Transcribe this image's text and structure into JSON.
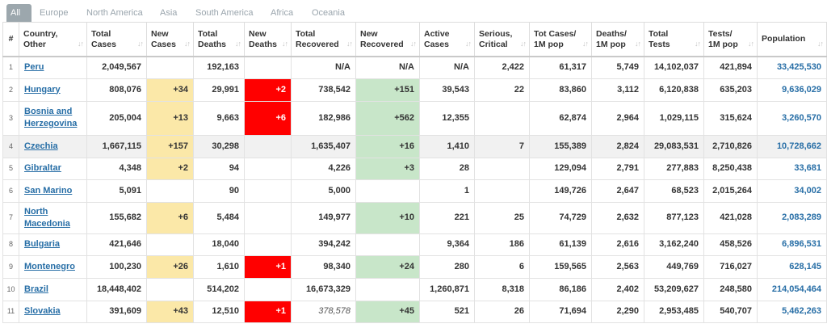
{
  "tabs": [
    "All",
    "Europe",
    "North America",
    "Asia",
    "South America",
    "Africa",
    "Oceania"
  ],
  "headers": {
    "idx": "#",
    "country": [
      "Country,",
      "Other"
    ],
    "total_cases": [
      "Total",
      "Cases"
    ],
    "new_cases": [
      "New",
      "Cases"
    ],
    "total_deaths": [
      "Total",
      "Deaths"
    ],
    "new_deaths": [
      "New",
      "Deaths"
    ],
    "total_recovered": [
      "Total",
      "Recovered"
    ],
    "new_recovered": [
      "New",
      "Recovered"
    ],
    "active_cases": [
      "Active",
      "Cases"
    ],
    "serious": [
      "Serious,",
      "Critical"
    ],
    "cases_per_m": [
      "Tot Cases/",
      "1M pop"
    ],
    "deaths_per_m": [
      "Deaths/",
      "1M pop"
    ],
    "total_tests": [
      "Total",
      "Tests"
    ],
    "tests_per_m": [
      "Tests/",
      "1M pop"
    ],
    "population": [
      "Population",
      ""
    ]
  },
  "sort_glyph": "↓↑",
  "rows": [
    {
      "idx": "1",
      "country": "Peru",
      "total_cases": "2,049,567",
      "new_cases": "",
      "total_deaths": "192,163",
      "new_deaths": "",
      "total_recovered": "N/A",
      "new_recovered": "N/A",
      "active_cases": "N/A",
      "serious": "2,422",
      "cases_per_m": "61,317",
      "deaths_per_m": "5,749",
      "total_tests": "14,102,037",
      "tests_per_m": "421,894",
      "population": "33,425,530"
    },
    {
      "idx": "2",
      "country": "Hungary",
      "total_cases": "808,076",
      "new_cases": "+34",
      "total_deaths": "29,991",
      "new_deaths": "+2",
      "total_recovered": "738,542",
      "new_recovered": "+151",
      "active_cases": "39,543",
      "serious": "22",
      "cases_per_m": "83,860",
      "deaths_per_m": "3,112",
      "total_tests": "6,120,838",
      "tests_per_m": "635,203",
      "population": "9,636,029"
    },
    {
      "idx": "3",
      "country": "Bosnia and Herzegovina",
      "total_cases": "205,004",
      "new_cases": "+13",
      "total_deaths": "9,663",
      "new_deaths": "+6",
      "total_recovered": "182,986",
      "new_recovered": "+562",
      "active_cases": "12,355",
      "serious": "",
      "cases_per_m": "62,874",
      "deaths_per_m": "2,964",
      "total_tests": "1,029,115",
      "tests_per_m": "315,624",
      "population": "3,260,570"
    },
    {
      "idx": "4",
      "country": "Czechia",
      "total_cases": "1,667,115",
      "new_cases": "+157",
      "total_deaths": "30,298",
      "new_deaths": "",
      "total_recovered": "1,635,407",
      "new_recovered": "+16",
      "active_cases": "1,410",
      "serious": "7",
      "cases_per_m": "155,389",
      "deaths_per_m": "2,824",
      "total_tests": "29,083,531",
      "tests_per_m": "2,710,826",
      "population": "10,728,662"
    },
    {
      "idx": "5",
      "country": "Gibraltar",
      "total_cases": "4,348",
      "new_cases": "+2",
      "total_deaths": "94",
      "new_deaths": "",
      "total_recovered": "4,226",
      "new_recovered": "+3",
      "active_cases": "28",
      "serious": "",
      "cases_per_m": "129,094",
      "deaths_per_m": "2,791",
      "total_tests": "277,883",
      "tests_per_m": "8,250,438",
      "population": "33,681"
    },
    {
      "idx": "6",
      "country": "San Marino",
      "total_cases": "5,091",
      "new_cases": "",
      "total_deaths": "90",
      "new_deaths": "",
      "total_recovered": "5,000",
      "new_recovered": "",
      "active_cases": "1",
      "serious": "",
      "cases_per_m": "149,726",
      "deaths_per_m": "2,647",
      "total_tests": "68,523",
      "tests_per_m": "2,015,264",
      "population": "34,002"
    },
    {
      "idx": "7",
      "country": "North Macedonia",
      "total_cases": "155,682",
      "new_cases": "+6",
      "total_deaths": "5,484",
      "new_deaths": "",
      "total_recovered": "149,977",
      "new_recovered": "+10",
      "active_cases": "221",
      "serious": "25",
      "cases_per_m": "74,729",
      "deaths_per_m": "2,632",
      "total_tests": "877,123",
      "tests_per_m": "421,028",
      "population": "2,083,289"
    },
    {
      "idx": "8",
      "country": "Bulgaria",
      "total_cases": "421,646",
      "new_cases": "",
      "total_deaths": "18,040",
      "new_deaths": "",
      "total_recovered": "394,242",
      "new_recovered": "",
      "active_cases": "9,364",
      "serious": "186",
      "cases_per_m": "61,139",
      "deaths_per_m": "2,616",
      "total_tests": "3,162,240",
      "tests_per_m": "458,526",
      "population": "6,896,531"
    },
    {
      "idx": "9",
      "country": "Montenegro",
      "total_cases": "100,230",
      "new_cases": "+26",
      "total_deaths": "1,610",
      "new_deaths": "+1",
      "total_recovered": "98,340",
      "new_recovered": "+24",
      "active_cases": "280",
      "serious": "6",
      "cases_per_m": "159,565",
      "deaths_per_m": "2,563",
      "total_tests": "449,769",
      "tests_per_m": "716,027",
      "population": "628,145"
    },
    {
      "idx": "10",
      "country": "Brazil",
      "total_cases": "18,448,402",
      "new_cases": "",
      "total_deaths": "514,202",
      "new_deaths": "",
      "total_recovered": "16,673,329",
      "new_recovered": "",
      "active_cases": "1,260,871",
      "serious": "8,318",
      "cases_per_m": "86,186",
      "deaths_per_m": "2,402",
      "total_tests": "53,209,627",
      "tests_per_m": "248,580",
      "population": "214,054,464"
    },
    {
      "idx": "11",
      "country": "Slovakia",
      "total_cases": "391,609",
      "new_cases": "+43",
      "total_deaths": "12,510",
      "new_deaths": "+1",
      "total_recovered": "378,578",
      "new_recovered": "+45",
      "active_cases": "521",
      "serious": "26",
      "cases_per_m": "71,694",
      "deaths_per_m": "2,290",
      "total_tests": "2,953,485",
      "tests_per_m": "540,707",
      "population": "5,462,263"
    }
  ],
  "colors": {
    "new_cases_bg": "#fbe8a8",
    "new_deaths_bg": "#ff0000",
    "new_recovered_bg": "#c8e6c9",
    "link": "#276ea6",
    "active_tab": "#9ca7ad"
  }
}
